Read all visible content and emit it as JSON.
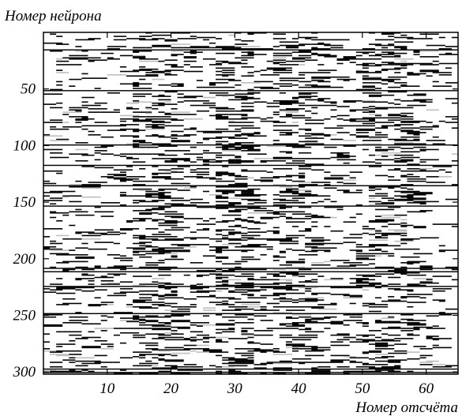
{
  "chart_data": {
    "type": "heatmap",
    "title": "",
    "ylabel": "Номер нейрона",
    "xlabel": "Номер отсчёта",
    "xlim": [
      0,
      65
    ],
    "ylim": [
      0,
      302
    ],
    "y_inverted": true,
    "x_ticks": [
      10,
      20,
      30,
      40,
      50,
      60
    ],
    "x_tick_labels": [
      "10",
      "20",
      "30",
      "40",
      "50",
      "60"
    ],
    "y_ticks": [
      50,
      100,
      150,
      200,
      250,
      300
    ],
    "y_tick_labels": [
      "50",
      "100",
      "150",
      "200",
      "250",
      "300"
    ],
    "grid": false,
    "legend": "none",
    "colors": {
      "on": "#000000",
      "off": "#ffffff",
      "faint": "#bdbdbd"
    },
    "description_of_values": "binary raster: black = neuron active at sample (horizontal segments); mostly random sparse activity with denser columns near samples 15-20, 28-32, 37-42, 50-57; a few neurons active across all samples",
    "full_rows": [
      16,
      52,
      100,
      118,
      136,
      154,
      209,
      212,
      225,
      249,
      298,
      301
    ]
  }
}
